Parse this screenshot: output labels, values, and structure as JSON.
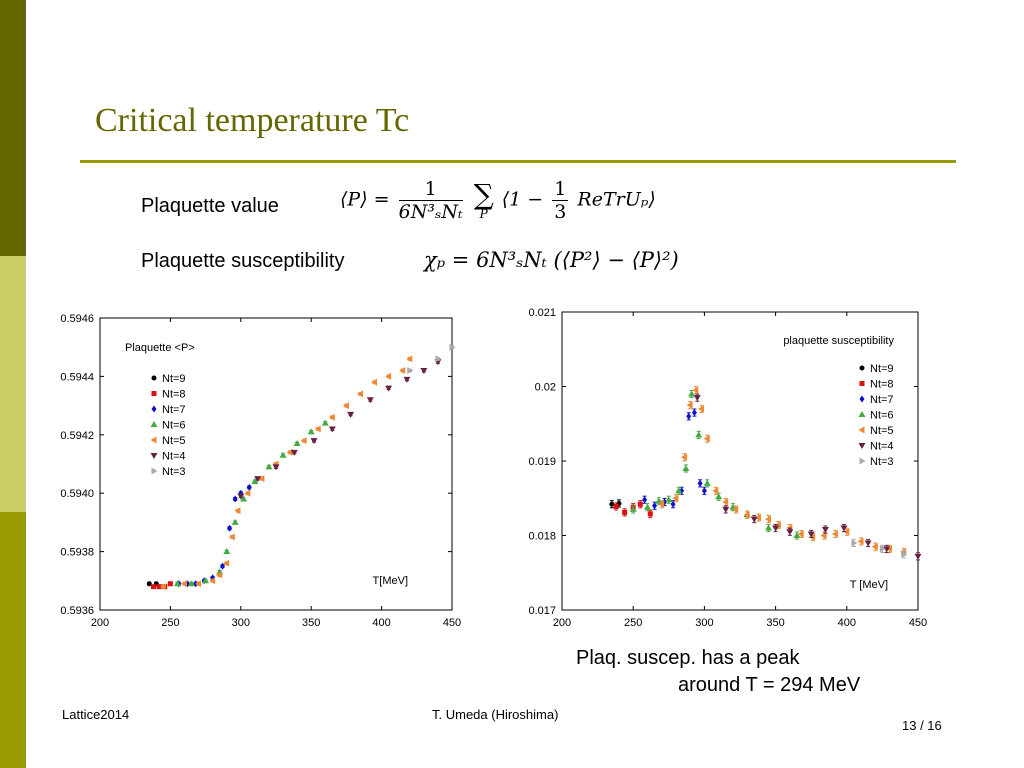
{
  "theme": {
    "accent": "#666600",
    "rule": "#999900",
    "bar_light": "#cccc66"
  },
  "slide": {
    "title": "Critical temperature Tc",
    "plaquette_label": "Plaquette value",
    "susceptibility_label": "Plaquette susceptibility",
    "formula1": {
      "lhs": "⟨P⟩ =",
      "num": "1",
      "den": "6N³ₛNₜ",
      "sum_sub": "P",
      "body_a": "⟨1 −",
      "frac2_num": "1",
      "frac2_den": "3",
      "body_b": "ReTrUₚ⟩"
    },
    "formula2": {
      "text": "χₚ = 6N³ₛNₜ (⟨P²⟩ − ⟨P⟩²)"
    },
    "note_line1": "Plaq. suscep. has a peak",
    "note_line2": "around T = 294 MeV",
    "footer": {
      "left": "Lattice2014",
      "center": "T. Umeda (Hiroshima)",
      "page": "13 / 16"
    }
  },
  "chart_data": [
    {
      "type": "scatter",
      "title": "Plaquette <P>",
      "xlabel": "T[MeV]",
      "xlim": [
        200,
        450
      ],
      "ylim": [
        0.5936,
        0.5946
      ],
      "xticks": [
        "200",
        "250",
        "300",
        "350",
        "400",
        "450"
      ],
      "yticks": [
        "0.5936",
        "0.5938",
        "0.5940",
        "0.5942",
        "0.5944",
        "0.5946"
      ],
      "legend_position": "top-left",
      "series": [
        {
          "name": "Nt=9",
          "color": "#000000",
          "marker": "circle",
          "x": [
            235,
            240
          ],
          "y": [
            0.59369,
            0.59369
          ]
        },
        {
          "name": "Nt=8",
          "color": "#dd1111",
          "marker": "square",
          "x": [
            238,
            242,
            246,
            250
          ],
          "y": [
            0.59368,
            0.59368,
            0.59368,
            0.59369
          ]
        },
        {
          "name": "Nt=7",
          "color": "#1111cc",
          "marker": "diamond",
          "x": [
            256,
            262,
            268,
            274,
            280,
            287,
            292,
            296,
            300,
            306
          ],
          "y": [
            0.59369,
            0.59369,
            0.59369,
            0.5937,
            0.59371,
            0.59375,
            0.59388,
            0.59398,
            0.594,
            0.59402
          ]
        },
        {
          "name": "Nt=6",
          "color": "#44aa44",
          "marker": "triangle-up",
          "x": [
            255,
            265,
            275,
            285,
            290,
            296,
            302,
            310,
            320,
            330,
            340,
            350,
            360
          ],
          "y": [
            0.59369,
            0.59369,
            0.5937,
            0.59373,
            0.5938,
            0.5939,
            0.59398,
            0.59404,
            0.59409,
            0.59413,
            0.59417,
            0.59421,
            0.59424
          ]
        },
        {
          "name": "Nt=5",
          "color": "#ee8833",
          "marker": "triangle-left",
          "x": [
            245,
            260,
            270,
            280,
            285,
            290,
            294,
            298,
            305,
            315,
            325,
            335,
            345,
            355,
            365,
            375,
            385,
            395,
            405,
            415,
            420
          ],
          "y": [
            0.59368,
            0.59369,
            0.59369,
            0.5937,
            0.59372,
            0.59376,
            0.59385,
            0.59394,
            0.594,
            0.59405,
            0.5941,
            0.59414,
            0.59418,
            0.59422,
            0.59426,
            0.5943,
            0.59434,
            0.59438,
            0.5944,
            0.59442,
            0.59446
          ]
        },
        {
          "name": "Nt=4",
          "color": "#662244",
          "marker": "triangle-down",
          "x": [
            300,
            312,
            325,
            338,
            352,
            365,
            378,
            392,
            405,
            418,
            430,
            440
          ],
          "y": [
            0.59399,
            0.59405,
            0.59409,
            0.59414,
            0.59418,
            0.59422,
            0.59427,
            0.59432,
            0.59436,
            0.59439,
            0.59442,
            0.59445
          ]
        },
        {
          "name": "Nt=3",
          "color": "#aaaaaa",
          "marker": "triangle-right",
          "x": [
            420,
            440,
            450
          ],
          "y": [
            0.59442,
            0.59446,
            0.5945
          ]
        }
      ]
    },
    {
      "type": "scatter",
      "title": "plaquette susceptibility",
      "xlabel": "T [MeV]",
      "xlim": [
        200,
        450
      ],
      "ylim": [
        0.017,
        0.021
      ],
      "xticks": [
        "200",
        "250",
        "300",
        "350",
        "400",
        "450"
      ],
      "yticks": [
        "0.017",
        "0.018",
        "0.019",
        "0.02",
        "0.021"
      ],
      "legend_position": "top-right",
      "series": [
        {
          "name": "Nt=9",
          "color": "#000000",
          "marker": "circle",
          "x": [
            235,
            240
          ],
          "y": [
            0.01842,
            0.01843
          ]
        },
        {
          "name": "Nt=8",
          "color": "#dd1111",
          "marker": "square",
          "x": [
            238,
            244,
            250,
            255,
            262
          ],
          "y": [
            0.01839,
            0.01831,
            0.01838,
            0.01842,
            0.01829
          ]
        },
        {
          "name": "Nt=7",
          "color": "#1111cc",
          "marker": "diamond",
          "x": [
            258,
            265,
            272,
            278,
            284,
            289,
            293,
            297,
            300
          ],
          "y": [
            0.01848,
            0.0184,
            0.01845,
            0.01842,
            0.0186,
            0.0196,
            0.01965,
            0.0187,
            0.0186
          ]
        },
        {
          "name": "Nt=6",
          "color": "#44aa44",
          "marker": "triangle-up",
          "x": [
            250,
            260,
            268,
            275,
            282,
            287,
            291,
            296,
            302,
            310,
            320,
            330,
            345,
            365
          ],
          "y": [
            0.01835,
            0.01838,
            0.01846,
            0.01848,
            0.0186,
            0.0189,
            0.0199,
            0.01935,
            0.0187,
            0.01852,
            0.01838,
            0.01828,
            0.0181,
            0.018
          ]
        },
        {
          "name": "Nt=5",
          "color": "#ee8833",
          "marker": "triangle-left",
          "x": [
            270,
            280,
            286,
            290,
            294,
            298,
            302,
            308,
            315,
            322,
            330,
            338,
            345,
            352,
            360,
            368,
            376,
            384,
            392,
            400,
            410,
            420,
            430,
            440
          ],
          "y": [
            0.01842,
            0.0185,
            0.01905,
            0.01975,
            0.01995,
            0.0197,
            0.0193,
            0.0186,
            0.01845,
            0.01835,
            0.01828,
            0.01824,
            0.01822,
            0.01814,
            0.0181,
            0.01802,
            0.01798,
            0.018,
            0.01802,
            0.01805,
            0.01792,
            0.01785,
            0.01782,
            0.01778
          ]
        },
        {
          "name": "Nt=4",
          "color": "#662244",
          "marker": "triangle-down",
          "x": [
            295,
            315,
            335,
            350,
            360,
            375,
            385,
            398,
            415,
            428,
            450
          ],
          "y": [
            0.01985,
            0.01835,
            0.01822,
            0.0181,
            0.01805,
            0.01802,
            0.01808,
            0.0181,
            0.0179,
            0.01782,
            0.01772
          ]
        },
        {
          "name": "Nt=3",
          "color": "#aaaaaa",
          "marker": "triangle-right",
          "x": [
            405,
            425,
            440
          ],
          "y": [
            0.0179,
            0.01782,
            0.01775
          ]
        }
      ]
    }
  ]
}
